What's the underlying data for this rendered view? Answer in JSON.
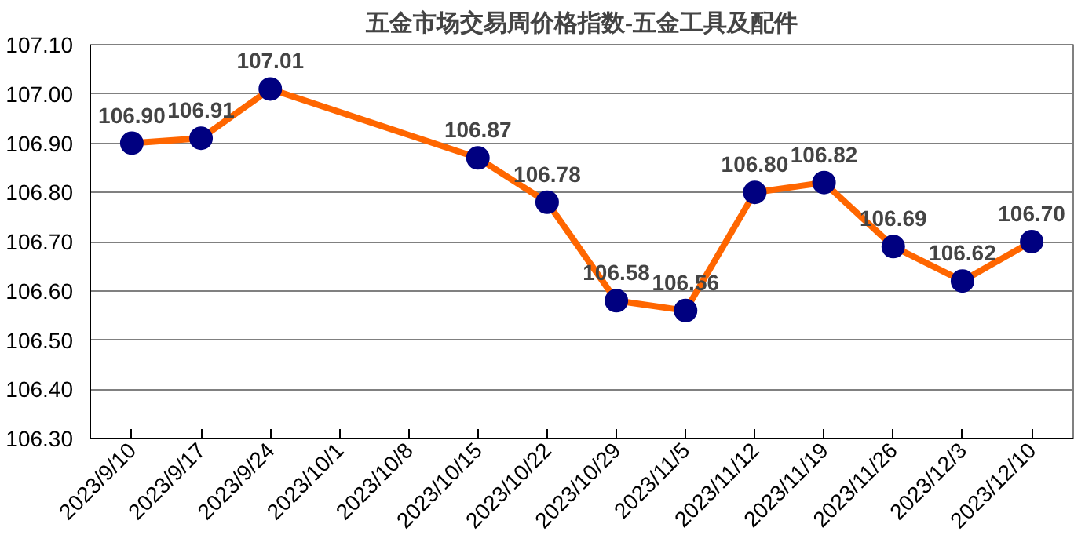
{
  "chart_data": {
    "type": "line",
    "title": "五金市场交易周价格指数-五金工具及配件",
    "categories": [
      "2023/9/10",
      "2023/9/17",
      "2023/9/24",
      "2023/10/1",
      "2023/10/8",
      "2023/10/15",
      "2023/10/22",
      "2023/10/29",
      "2023/11/5",
      "2023/11/12",
      "2023/11/19",
      "2023/11/26",
      "2023/12/3",
      "2023/12/10"
    ],
    "series": [
      {
        "color": "#ff6600",
        "values": [
          106.9,
          106.91,
          107.01,
          null,
          null,
          106.87,
          106.78,
          106.58,
          106.56,
          106.8,
          106.82,
          106.69,
          106.62,
          106.7
        ],
        "value_labels": [
          "106.90",
          "106.91",
          "107.01",
          null,
          null,
          "106.87",
          "106.78",
          "106.58",
          "106.56",
          "106.80",
          "106.82",
          "106.69",
          "106.62",
          "106.70"
        ]
      }
    ],
    "marker": "circle",
    "line_style": "solid",
    "grid": "y",
    "ylim": [
      106.3,
      107.1
    ],
    "yticks": [
      {
        "value": 106.3,
        "label": "106.30"
      },
      {
        "value": 106.4,
        "label": "106.40"
      },
      {
        "value": 106.5,
        "label": "106.50"
      },
      {
        "value": 106.6,
        "label": "106.60"
      },
      {
        "value": 106.7,
        "label": "106.70"
      },
      {
        "value": 106.8,
        "label": "106.80"
      },
      {
        "value": 106.9,
        "label": "106.90"
      },
      {
        "value": 107.0,
        "label": "107.00"
      },
      {
        "value": 107.1,
        "label": "107.10"
      }
    ]
  }
}
